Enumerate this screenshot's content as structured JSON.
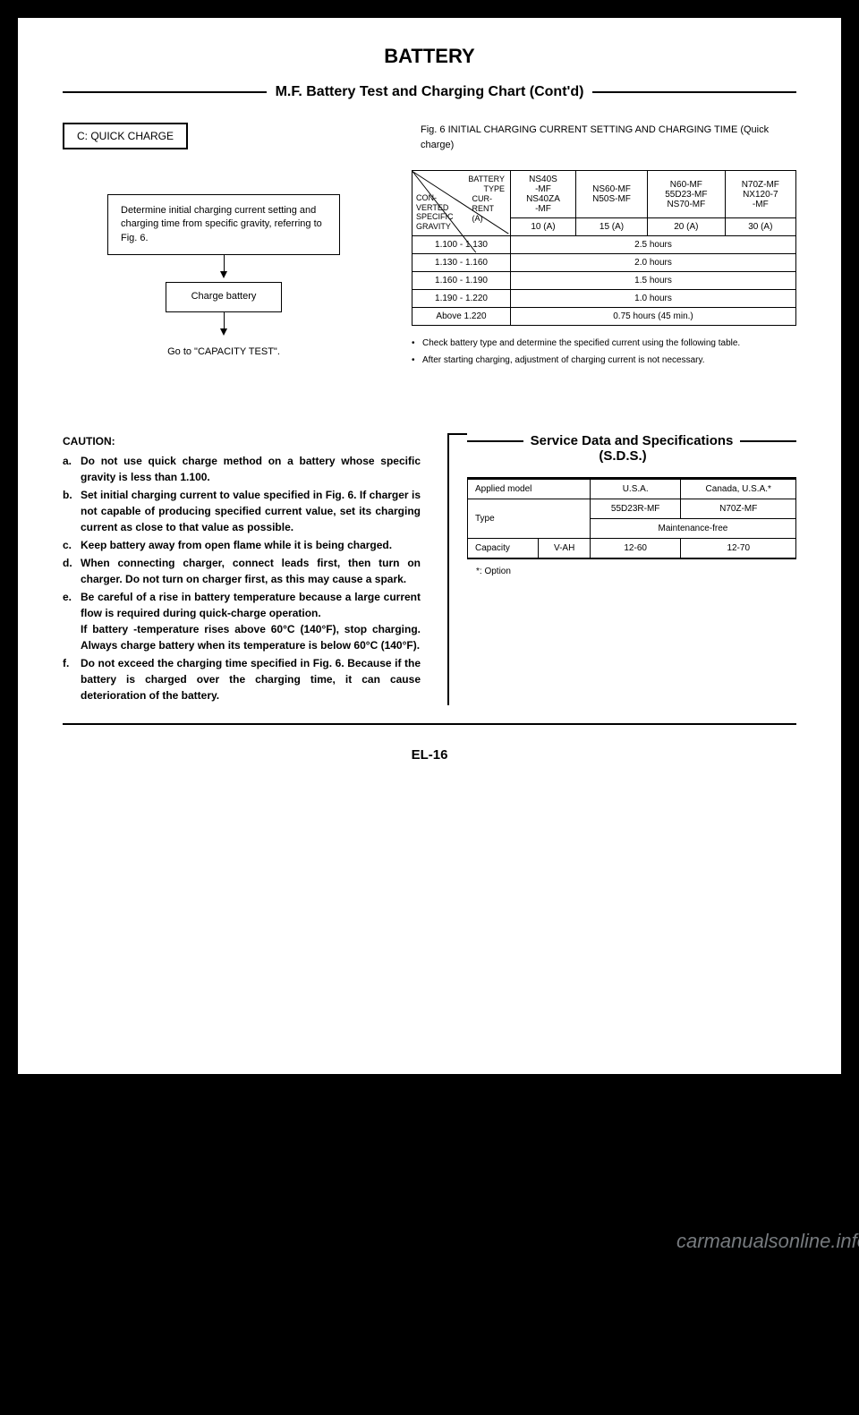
{
  "title": "BATTERY",
  "subtitle": "M.F. Battery Test and Charging Chart (Cont'd)",
  "quickChargeLabel": "C: QUICK CHARGE",
  "flow": {
    "step1": "Determine initial charging current setting and charging time from specific gravity, referring to Fig. 6.",
    "step2": "Charge battery",
    "step3": "Go to \"CAPACITY TEST\"."
  },
  "figCaption": "Fig. 6 INITIAL CHARGING CURRENT SETTING AND CHARGING TIME (Quick charge)",
  "chargeTable": {
    "diagTop": "BATTERY\nTYPE",
    "diagMid": "CUR-\nRENT\n(A)",
    "diagBot": "CON-\nVERTED\nSPECIFIC\nGRAVITY",
    "headers": [
      [
        "NS40S\n-MF\nNS40ZA\n-MF",
        "NS60-MF\nN50S-MF",
        "N60-MF\n55D23-MF\nNS70-MF",
        "N70Z-MF\nNX120-7\n-MF"
      ],
      [
        "10 (A)",
        "15 (A)",
        "20 (A)",
        "30 (A)"
      ]
    ],
    "rows": [
      {
        "sg": "1.100 - 1.130",
        "time": "2.5 hours"
      },
      {
        "sg": "1.130 - 1.160",
        "time": "2.0 hours"
      },
      {
        "sg": "1.160 - 1.190",
        "time": "1.5 hours"
      },
      {
        "sg": "1.190 - 1.220",
        "time": "1.0 hours"
      },
      {
        "sg": "Above 1.220",
        "time": "0.75 hours (45 min.)"
      }
    ]
  },
  "notes": [
    "Check battery type and determine the specified current using the following table.",
    "After starting charging, adjustment of charging current is not necessary."
  ],
  "cautionHead": "CAUTION:",
  "cautions": [
    {
      "l": "a.",
      "t": "Do not use quick charge method on a battery whose specific gravity is less than 1.100."
    },
    {
      "l": "b.",
      "t": "Set initial charging current to value specified in Fig. 6. If charger is not capable of producing specified current value, set its charging current as close to that value as possible."
    },
    {
      "l": "c.",
      "t": "Keep battery away from open flame while it is being charged."
    },
    {
      "l": "d.",
      "t": "When connecting charger, connect leads first, then turn on charger. Do not turn on charger first, as this may cause a spark."
    },
    {
      "l": "e.",
      "t": "Be careful of a rise in battery temperature because a large current flow is required during quick-charge operation.\nIf battery -temperature rises above 60°C (140°F), stop charging. Always charge battery when its temperature is below 60°C (140°F)."
    },
    {
      "l": "f.",
      "t": "Do not exceed the charging time specified in Fig. 6. Because if the battery is charged over the charging time, it can cause deterioration of the battery."
    }
  ],
  "sds": {
    "title": "Service Data and Specifications",
    "subtitle": "(S.D.S.)",
    "rows": {
      "appliedLabel": "Applied model",
      "appliedUSA": "U.S.A.",
      "appliedCanada": "Canada, U.S.A.*",
      "typeLabel": "Type",
      "type1": "55D23R-MF",
      "type2": "N70Z-MF",
      "maint": "Maintenance-free",
      "capLabel": "Capacity",
      "capUnit": "V-AH",
      "cap1": "12-60",
      "cap2": "12-70"
    },
    "note": "*: Option"
  },
  "pageNum": "EL-16",
  "watermark": "carmanualsonline.info"
}
